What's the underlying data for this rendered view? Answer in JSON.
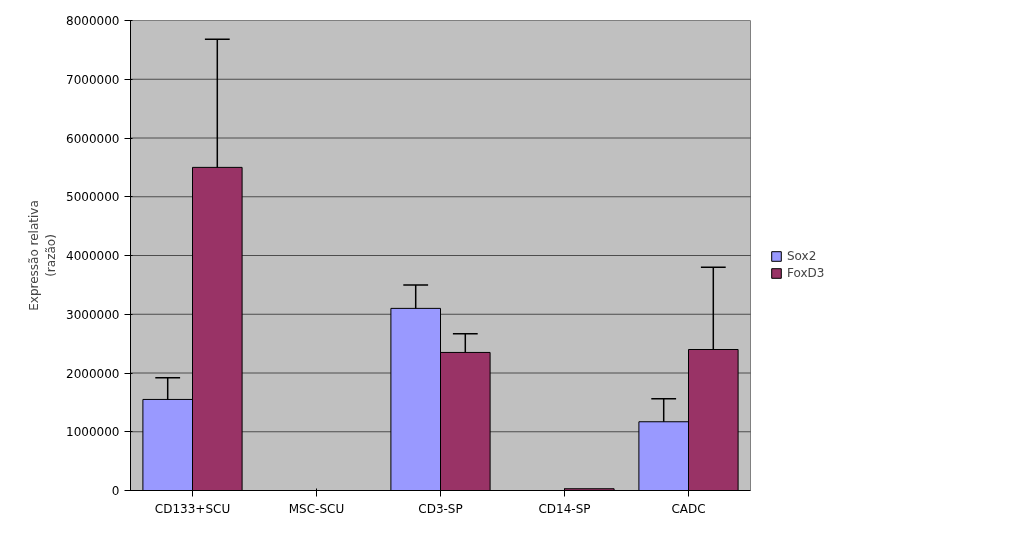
{
  "chart_data": {
    "type": "bar",
    "ylabel": "Expressão relativa\n(razão)",
    "categories": [
      "CD133+SCU",
      "MSC-SCU",
      "CD3-SP",
      "CD14-SP",
      "CADC"
    ],
    "series": [
      {
        "name": "Sox2",
        "color": "#9999ff",
        "values": [
          1550000,
          0,
          3100000,
          0,
          1170000
        ],
        "errors": [
          [
            1550000,
            1920000
          ],
          null,
          [
            3100000,
            3500000
          ],
          null,
          [
            1170000,
            1560000
          ]
        ]
      },
      {
        "name": "FoxD3",
        "color": "#993366",
        "values": [
          5500000,
          0,
          2350000,
          30000,
          2400000
        ],
        "errors": [
          [
            5500000,
            7680000
          ],
          null,
          [
            2350000,
            2670000
          ],
          null,
          [
            2400000,
            3800000
          ]
        ]
      }
    ],
    "ylim": [
      0,
      8000000
    ],
    "yticks": [
      0,
      1000000,
      2000000,
      3000000,
      4000000,
      5000000,
      6000000,
      7000000,
      8000000
    ],
    "grid": "y",
    "legend": "right"
  }
}
